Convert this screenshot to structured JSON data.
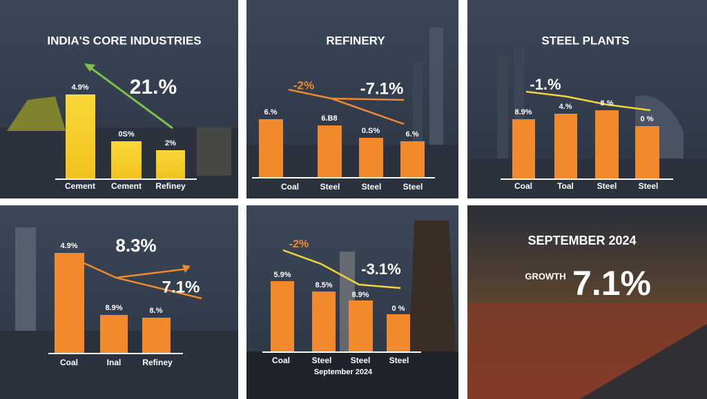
{
  "panels": [
    {
      "title": "INDIA'S CORE INDUSTRIES",
      "headline": "21.%",
      "bars": [
        {
          "label": "4.9%",
          "category": "Cement"
        },
        {
          "label": "0S%",
          "category": "Cement"
        },
        {
          "label": "2%",
          "category": "Refiney"
        }
      ]
    },
    {
      "title": "REFINERY",
      "callouts": [
        "-2%",
        "-7.1%"
      ],
      "bars": [
        {
          "label": "6.%",
          "category": "Coal"
        },
        {
          "label": "6.B8",
          "category": "Steel"
        },
        {
          "label": "0.S%",
          "category": "Steel"
        },
        {
          "label": "6.%",
          "category": "Steel"
        }
      ]
    },
    {
      "title": "STEEL PLANTS",
      "callouts": [
        "-1.%"
      ],
      "bars": [
        {
          "label": "8.9%",
          "category": "Coal"
        },
        {
          "label": "4.%",
          "category": "Toal"
        },
        {
          "label": "8 %",
          "category": "Steel"
        },
        {
          "label": "0 %",
          "category": "Steel"
        }
      ]
    },
    {
      "callouts": [
        "8.3%",
        "7.1%"
      ],
      "bars": [
        {
          "label": "4.9%",
          "category": "Coal"
        },
        {
          "label": "8.9%",
          "category": "Inal"
        },
        {
          "label": "8.%",
          "category": "Refiney"
        }
      ]
    },
    {
      "callouts": [
        "-2%",
        "-3.1%"
      ],
      "caption": "September 2024",
      "bars": [
        {
          "label": "5.9%",
          "category": "Coal"
        },
        {
          "label": "8.5%",
          "category": "Steel"
        },
        {
          "label": "8.9%",
          "category": "Steel"
        },
        {
          "label": "0 %",
          "category": "Steel"
        }
      ]
    },
    {
      "title": "SEPTEMBER 2024",
      "label": "GROWTH",
      "headline": "7.1%"
    }
  ]
}
